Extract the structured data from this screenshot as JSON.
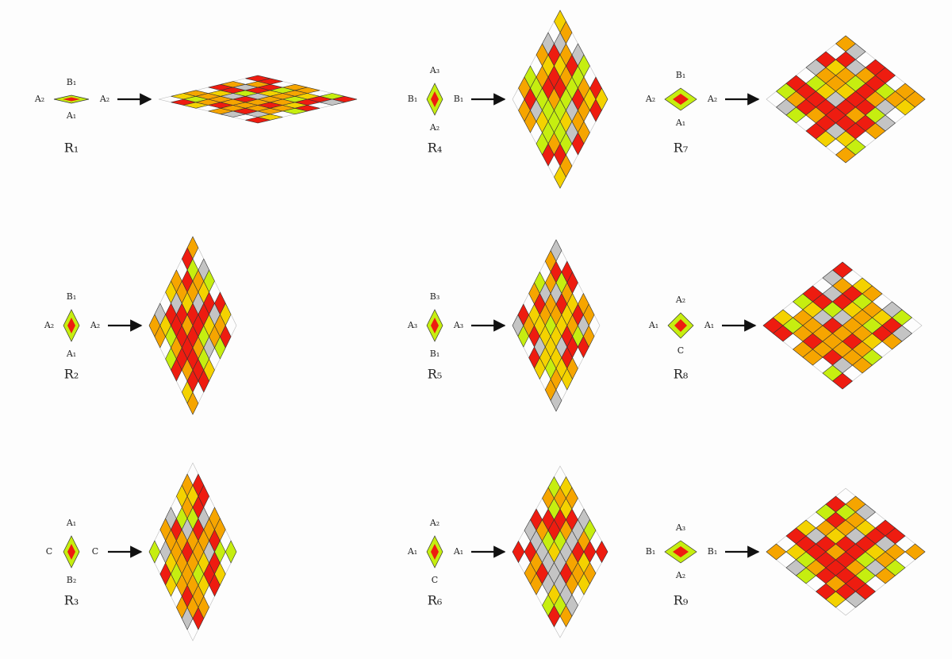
{
  "rules": [
    {
      "name": "R₁",
      "top": "B₁",
      "left": "A₂",
      "bottom": "A₁"
    },
    {
      "name": "R₂",
      "top": "B₁",
      "left": "A₂",
      "bottom": "A₁"
    },
    {
      "name": "R₃",
      "top": "A₁",
      "left": "C",
      "bottom": "B₂"
    },
    {
      "name": "R₄",
      "top": "A₃",
      "left": "B₁",
      "bottom": "A₂"
    },
    {
      "name": "R₅",
      "top": "B₃",
      "left": "A₃",
      "bottom": "B₁"
    },
    {
      "name": "R₆",
      "top": "A₂",
      "left": "A₁",
      "bottom": "C"
    },
    {
      "name": "R₇",
      "top": "B₁",
      "left": "A₂",
      "bottom": "A₁"
    },
    {
      "name": "R₈",
      "top": "A₂",
      "left": "A₁",
      "bottom": "C"
    },
    {
      "name": "R₉",
      "top": "A₃",
      "left": "B₁",
      "bottom": "A₂"
    }
  ]
}
